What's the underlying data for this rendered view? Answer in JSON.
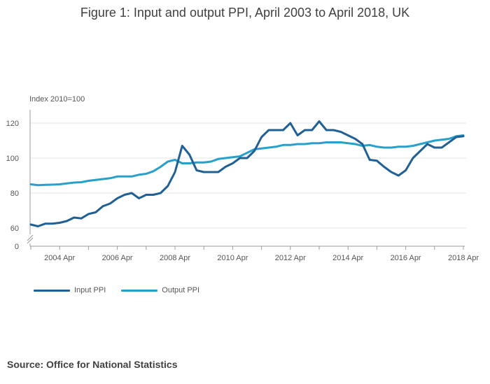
{
  "title": "Figure 1: Input and output PPI, April 2003 to April 2018, UK",
  "units_label": "Index 2010=100",
  "source": "Source: Office for National Statistics",
  "colors": {
    "input": "#206095",
    "output": "#27a0cc",
    "grid": "#e4e4e4",
    "axis": "#999999"
  },
  "chart_data": {
    "type": "line",
    "title": "Figure 1: Input and output PPI, April 2003 to April 2018, UK",
    "ylabel": "Index 2010=100",
    "xlabel": "",
    "ylim": [
      0,
      130
    ],
    "y_axis_break": [
      0,
      55
    ],
    "yticks": [
      0,
      60,
      80,
      100,
      120
    ],
    "xticks": [
      "2004 Apr",
      "2006 Apr",
      "2008 Apr",
      "2010 Apr",
      "2012 Apr",
      "2014 Apr",
      "2016 Apr",
      "2018 Apr"
    ],
    "grid": true,
    "legend_position": "bottom-left",
    "x": [
      "2003 Apr",
      "2003 Jul",
      "2003 Oct",
      "2004 Jan",
      "2004 Apr",
      "2004 Jul",
      "2004 Oct",
      "2005 Jan",
      "2005 Apr",
      "2005 Jul",
      "2005 Oct",
      "2006 Jan",
      "2006 Apr",
      "2006 Jul",
      "2006 Oct",
      "2007 Jan",
      "2007 Apr",
      "2007 Jul",
      "2007 Oct",
      "2008 Jan",
      "2008 Apr",
      "2008 Jul",
      "2008 Oct",
      "2009 Jan",
      "2009 Apr",
      "2009 Jul",
      "2009 Oct",
      "2010 Jan",
      "2010 Apr",
      "2010 Jul",
      "2010 Oct",
      "2011 Jan",
      "2011 Apr",
      "2011 Jul",
      "2011 Oct",
      "2012 Jan",
      "2012 Apr",
      "2012 Jul",
      "2012 Oct",
      "2013 Jan",
      "2013 Apr",
      "2013 Jul",
      "2013 Oct",
      "2014 Jan",
      "2014 Apr",
      "2014 Jul",
      "2014 Oct",
      "2015 Jan",
      "2015 Apr",
      "2015 Jul",
      "2015 Oct",
      "2016 Jan",
      "2016 Apr",
      "2016 Jul",
      "2016 Oct",
      "2017 Jan",
      "2017 Apr",
      "2017 Jul",
      "2017 Oct",
      "2018 Jan",
      "2018 Apr"
    ],
    "series": [
      {
        "name": "Input PPI",
        "values": [
          62,
          61,
          62.5,
          62.5,
          63,
          64,
          66,
          65.5,
          68,
          69,
          72.5,
          74,
          77,
          79,
          80,
          77,
          79,
          79,
          80,
          84,
          92,
          107,
          102,
          93,
          92,
          92,
          92,
          95,
          97,
          100,
          100,
          104,
          112,
          116,
          116,
          116,
          120,
          113,
          116,
          116,
          121,
          116,
          116,
          115,
          113,
          111,
          108,
          99,
          98.5,
          95,
          92,
          90,
          93,
          100,
          104,
          108,
          106,
          106,
          109,
          112,
          112.5
        ]
      },
      {
        "name": "Output PPI",
        "values": [
          85,
          84.5,
          84.7,
          84.8,
          85,
          85.5,
          86,
          86.2,
          87,
          87.5,
          88,
          88.5,
          89.5,
          89.5,
          89.5,
          90.5,
          91,
          92.5,
          95,
          98,
          99,
          97,
          97,
          97.5,
          97.5,
          98,
          99.5,
          100,
          100.5,
          101,
          103,
          105,
          105.5,
          106,
          106.5,
          107.5,
          107.5,
          108,
          108,
          108.5,
          108.5,
          109,
          109,
          109,
          108.5,
          108,
          107,
          107.5,
          106.5,
          106,
          106,
          106.5,
          106.5,
          107,
          108,
          109,
          110,
          110.5,
          111,
          112.5,
          113
        ]
      }
    ]
  }
}
